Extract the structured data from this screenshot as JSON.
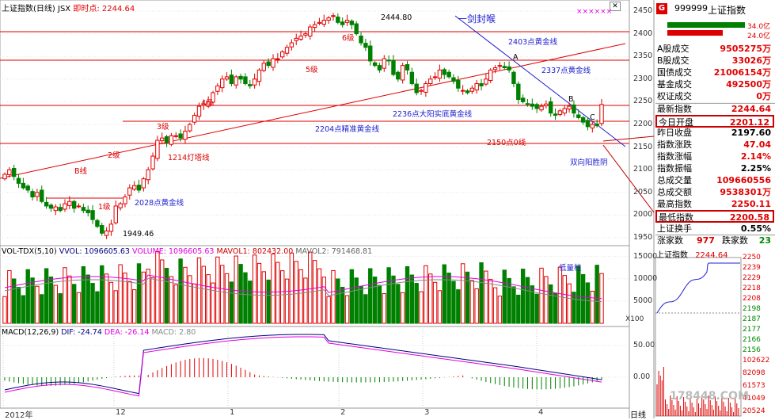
{
  "header": {
    "title": "上证指数(日线)",
    "code": "JSX",
    "realtime_label": "即时点:",
    "realtime_value": "2244.64",
    "stars": "××××××"
  },
  "price_axis": [
    "2450",
    "2400",
    "2350",
    "2300",
    "2250",
    "2200",
    "2150",
    "2100",
    "2050",
    "2000",
    "1950"
  ],
  "volume_axis": [
    "15000",
    "10000",
    "5000"
  ],
  "volume_unit": "X100",
  "macd_axis": [
    "50.00",
    "0.00"
  ],
  "time_axis": [
    "2012年",
    "12",
    "1",
    "2",
    "3",
    "4"
  ],
  "period_label": "日线",
  "annotations": {
    "high": "2444.80",
    "low": "1949.46",
    "title_note": "一剑封喉",
    "l2403": "2403点黄金线",
    "l2337": "2337点黄金线",
    "l2236": "2236点大阳实底黄金线",
    "l2204": "2204点精准黄金线",
    "l2150": "2150点0线",
    "l1214": "1214灯塔线",
    "l2028": "2028点黄金线",
    "shuangxiang": "双向阳胜阴",
    "lowvol": "低量柱",
    "b_line": "B线",
    "lvl1": "1级",
    "lvl2": "2级",
    "lvl3": "3级",
    "lvl4": "4级",
    "lvl5": "5级",
    "lvl6": "6级",
    "pt_a": "A",
    "pt_b": "B",
    "pt_c": "C"
  },
  "indicators": {
    "vol": {
      "name": "VOL-TDX(5,10)",
      "vvol": "VVOL: 1096605.63",
      "volume": "VOLUME: 1096605.63",
      "mavol1": "MAVOL1: 802432.00",
      "mavol2": "MAVOL2: 791468.81"
    },
    "macd": {
      "name": "MACD(12,26,9)",
      "dif": "DIF: -24.74",
      "dea": "DEA: -26.14",
      "macd": "MACD: 2.80"
    }
  },
  "quote": {
    "code": "999999",
    "name": "上证指数",
    "badge": "G",
    "bar1": "34.0亿",
    "bar2": "24.0亿",
    "rows": [
      {
        "label": "A股成交",
        "value": "9505275万",
        "color": "red"
      },
      {
        "label": "B股成交",
        "value": "33026万",
        "color": "red"
      },
      {
        "label": "国债成交",
        "value": "21006154万",
        "color": "red"
      },
      {
        "label": "基金成交",
        "value": "492500万",
        "color": "red"
      },
      {
        "label": "权证成交",
        "value": "0万",
        "color": "red"
      },
      {
        "label": "最新指数",
        "value": "2244.64",
        "color": "red"
      },
      {
        "label": "今日开盘",
        "value": "2201.12",
        "color": "red"
      },
      {
        "label": "昨日收盘",
        "value": "2197.60",
        "color": "blk"
      },
      {
        "label": "指数涨跌",
        "value": "47.04",
        "color": "red"
      },
      {
        "label": "指数涨幅",
        "value": "2.14%",
        "color": "red"
      },
      {
        "label": "指数振幅",
        "value": "2.25%",
        "color": "blk"
      },
      {
        "label": "总成交量",
        "value": "109660556",
        "color": "red"
      },
      {
        "label": "总成交额",
        "value": "9538301万",
        "color": "red"
      },
      {
        "label": "最高指数",
        "value": "2250.11",
        "color": "red"
      },
      {
        "label": "最低指数",
        "value": "2200.58",
        "color": "red"
      },
      {
        "label": "上证换手",
        "value": "0.55%",
        "color": "blk"
      }
    ],
    "up_label": "涨家数",
    "up_value": "977",
    "down_label": "跌家数",
    "down_value": "23"
  },
  "mini": {
    "title": "上证指数",
    "value": "2244.64",
    "axis": [
      "2250",
      "2239",
      "2229",
      "2218",
      "2208",
      "2198",
      "2187",
      "2177",
      "2166",
      "2156"
    ],
    "vol_axis": [
      "102622",
      "82098",
      "61573",
      "41049",
      "20524"
    ]
  },
  "watermark": "178448.COM"
}
